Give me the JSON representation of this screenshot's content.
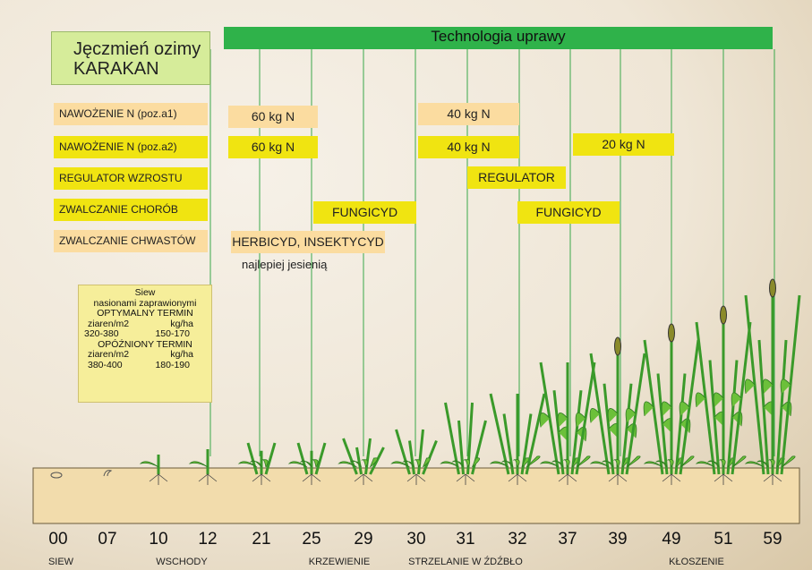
{
  "title": {
    "line1": "Jęczmień ozimy",
    "line2": "KARAKAN"
  },
  "banner": "Technologia  uprawy",
  "rows": [
    {
      "label": "NAWOŻENIE  N (poz.a1)",
      "actions": [
        "60 kg N",
        "40 kg N"
      ]
    },
    {
      "label": "NAWOŻENIE  N (poz.a2)",
      "actions": [
        "60 kg N",
        "40 kg N",
        "20 kg N"
      ]
    },
    {
      "label": "REGULATOR WZROSTU",
      "actions": [
        "REGULATOR"
      ]
    },
    {
      "label": "ZWALCZANIE  CHORÓB",
      "actions": [
        "FUNGICYD",
        "FUNGICYD"
      ]
    },
    {
      "label": "ZWALCZANIE  CHWASTÓW",
      "actions": [
        "HERBICYD, INSEKTYCYD"
      ]
    }
  ],
  "note": "najlepiej  jesienią",
  "info": {
    "line1": "Siew",
    "line2": "nasionami  zaprawionymi",
    "optimal": "OPTYMALNY TERMIN",
    "opt_head": [
      "ziaren/m2",
      "kg/ha"
    ],
    "opt_vals": [
      "320-380",
      "150-170"
    ],
    "late": "OPÓŹNIONY TERMIN",
    "late_head": [
      "ziaren/m2",
      "kg/ha"
    ],
    "late_vals": [
      "380-400",
      "180-190"
    ]
  },
  "stages": [
    "00",
    "07",
    "10",
    "12",
    "21",
    "25",
    "29",
    "30",
    "31",
    "32",
    "37",
    "39",
    "49",
    "51",
    "59"
  ],
  "phases": [
    "SIEW",
    "WSCHODY",
    "KRZEWIENIE",
    "STRZELANIE W ŹDŹBŁO",
    "KŁOSZENIE"
  ]
}
